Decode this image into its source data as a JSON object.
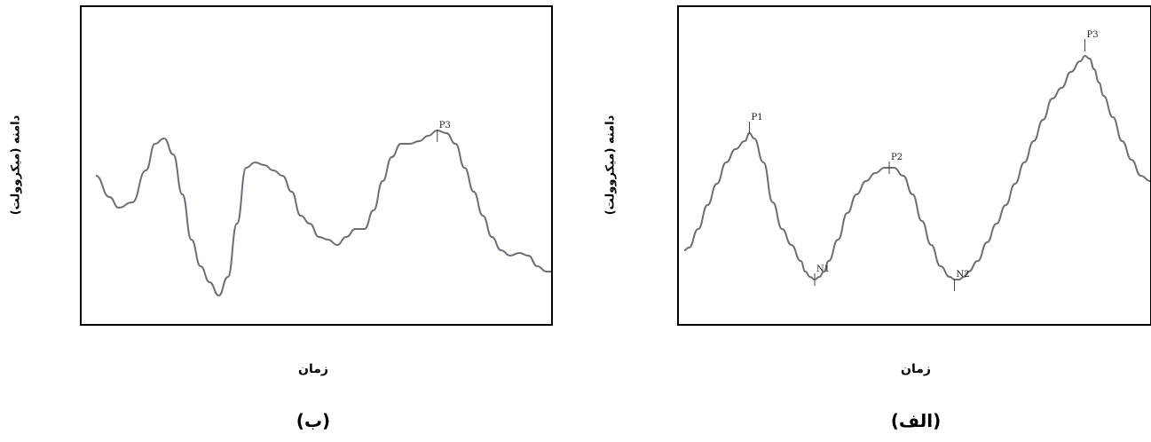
{
  "trace_color": "#6e6e78",
  "chart_data": [
    {
      "type": "line",
      "panel_label": "(ب)",
      "xlabel": "زمان",
      "ylabel": "دامنه (میکروولت)",
      "grid": false,
      "annotations": [
        {
          "text": "P3",
          "x": 75,
          "y": 64
        }
      ],
      "series": [
        {
          "x": [
            0,
            3,
            5,
            8,
            11,
            13,
            15,
            17,
            19,
            21,
            23,
            25,
            27,
            29,
            31,
            33,
            35,
            37,
            39,
            41,
            43,
            45,
            47,
            49,
            51,
            53,
            55,
            57,
            59,
            61,
            63,
            65,
            67,
            69,
            71,
            73,
            75,
            77,
            79,
            81,
            83,
            85,
            87,
            89,
            91,
            93,
            95,
            97,
            99,
            100
          ],
          "y": [
            50,
            42,
            38,
            40,
            52,
            62,
            64,
            58,
            43,
            26,
            16,
            10,
            5,
            12,
            32,
            53,
            55,
            54,
            52,
            50,
            44,
            35,
            32,
            27,
            26,
            24,
            27,
            30,
            30,
            37,
            48,
            57,
            62,
            62,
            63,
            65,
            67,
            66,
            62,
            53,
            44,
            35,
            27,
            22,
            20,
            21,
            20,
            16,
            14,
            14
          ]
        }
      ]
    },
    {
      "type": "line",
      "panel_label": "(الف)",
      "xlabel": "زمان",
      "ylabel": "دامنه (میکروولت)",
      "grid": false,
      "annotations": [
        {
          "text": "P1",
          "x": 14,
          "y": 67
        },
        {
          "text": "N1",
          "x": 28,
          "y": 12
        },
        {
          "text": "P2",
          "x": 44,
          "y": 52
        },
        {
          "text": "N2",
          "x": 58,
          "y": 10
        },
        {
          "text": "P3",
          "x": 86,
          "y": 98
        }
      ],
      "series": [
        {
          "x": [
            0,
            1,
            3,
            5,
            7,
            9,
            11,
            13,
            14,
            15,
            17,
            19,
            21,
            23,
            25,
            26,
            27,
            28,
            29,
            30,
            31,
            33,
            35,
            37,
            39,
            41,
            43,
            44,
            45,
            47,
            49,
            51,
            53,
            55,
            57,
            58,
            59,
            60,
            61,
            63,
            65,
            67,
            69,
            71,
            73,
            75,
            77,
            79,
            81,
            83,
            85,
            86,
            87,
            88,
            89,
            90,
            92,
            94,
            96,
            98,
            100
          ],
          "y": [
            22,
            23,
            30,
            39,
            47,
            55,
            60,
            63,
            66,
            64,
            55,
            40,
            30,
            24,
            18,
            14,
            12,
            11,
            12,
            14,
            18,
            26,
            36,
            43,
            48,
            51,
            53,
            53,
            53,
            50,
            43,
            33,
            24,
            16,
            12,
            11,
            11,
            12,
            14,
            18,
            25,
            32,
            39,
            47,
            55,
            63,
            71,
            79,
            83,
            89,
            93,
            95,
            94,
            90,
            85,
            80,
            72,
            63,
            56,
            50,
            48
          ]
        }
      ]
    }
  ]
}
